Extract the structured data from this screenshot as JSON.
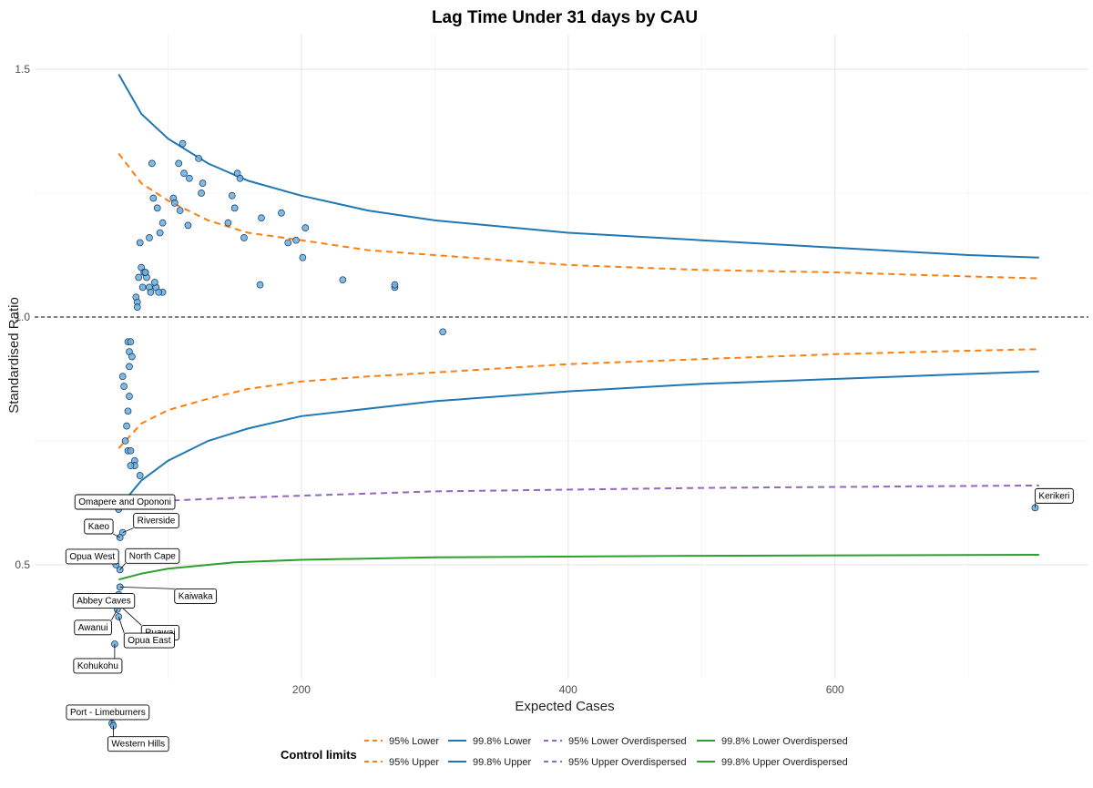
{
  "chart_data": {
    "type": "scatter",
    "title": "Lag Time Under 31 days by CAU",
    "xlabel": "Expected Cases",
    "ylabel": "Standardised Ratio",
    "xlim": [
      0,
      790
    ],
    "ylim": [
      0.27,
      1.57
    ],
    "x_ticks": [
      200,
      400,
      600
    ],
    "x_tick_labels": [
      "200",
      "400",
      "600"
    ],
    "y_ticks": [
      0.5,
      1.0,
      1.5
    ],
    "y_tick_labels": [
      "0.5",
      "1.0",
      "1.5"
    ],
    "reference_line": 1.0,
    "grid": true,
    "legend": {
      "position": "bottom",
      "title": "Control limits",
      "items": [
        {
          "key": "l95",
          "label": "95% Lower",
          "color": "#ff7f0e",
          "dash": "dashed"
        },
        {
          "key": "u95",
          "label": "95% Upper",
          "color": "#ff7f0e",
          "dash": "dashed"
        },
        {
          "key": "l998",
          "label": "99.8% Lower",
          "color": "#1f77b4",
          "dash": "solid"
        },
        {
          "key": "u998",
          "label": "99.8% Upper",
          "color": "#1f77b4",
          "dash": "solid"
        },
        {
          "key": "l95od",
          "label": "95% Lower Overdispersed",
          "color": "#9467bd",
          "dash": "dashed"
        },
        {
          "key": "u95od",
          "label": "95% Upper Overdispersed",
          "color": "#9467bd",
          "dash": "dashed"
        },
        {
          "key": "l998od",
          "label": "99.8% Lower Overdispersed",
          "color": "#2ca02c",
          "dash": "solid"
        },
        {
          "key": "u998od",
          "label": "99.8% Upper Overdispersed",
          "color": "#2ca02c",
          "dash": "solid"
        }
      ]
    },
    "series": [
      {
        "key": "u998",
        "color": "#1f77b4",
        "dash": "solid",
        "x": [
          63,
          80,
          100,
          130,
          160,
          200,
          250,
          300,
          400,
          500,
          600,
          700,
          753
        ],
        "y": [
          1.49,
          1.41,
          1.36,
          1.31,
          1.275,
          1.245,
          1.215,
          1.195,
          1.17,
          1.155,
          1.14,
          1.125,
          1.12
        ]
      },
      {
        "key": "u95",
        "color": "#ff7f0e",
        "dash": "dashed",
        "x": [
          63,
          80,
          100,
          130,
          160,
          200,
          250,
          300,
          400,
          500,
          600,
          700,
          753
        ],
        "y": [
          1.33,
          1.27,
          1.235,
          1.195,
          1.17,
          1.155,
          1.135,
          1.125,
          1.105,
          1.095,
          1.09,
          1.082,
          1.078
        ]
      },
      {
        "key": "l95",
        "color": "#ff7f0e",
        "dash": "dashed",
        "x": [
          63,
          80,
          100,
          130,
          160,
          200,
          250,
          300,
          400,
          500,
          600,
          700,
          753
        ],
        "y": [
          0.735,
          0.785,
          0.812,
          0.835,
          0.855,
          0.87,
          0.88,
          0.888,
          0.905,
          0.915,
          0.925,
          0.932,
          0.935
        ]
      },
      {
        "key": "l998",
        "color": "#1f77b4",
        "dash": "solid",
        "x": [
          63,
          80,
          100,
          130,
          160,
          200,
          250,
          300,
          400,
          500,
          600,
          700,
          753
        ],
        "y": [
          0.615,
          0.67,
          0.71,
          0.75,
          0.775,
          0.8,
          0.815,
          0.83,
          0.85,
          0.865,
          0.875,
          0.885,
          0.89
        ]
      },
      {
        "key": "l95od",
        "color": "#9467bd",
        "dash": "dashed",
        "x": [
          63,
          150,
          300,
          500,
          753
        ],
        "y": [
          0.625,
          0.635,
          0.648,
          0.655,
          0.66
        ]
      },
      {
        "key": "l998od",
        "color": "#2ca02c",
        "dash": "solid",
        "x": [
          63,
          80,
          100,
          150,
          200,
          300,
          500,
          753
        ],
        "y": [
          0.47,
          0.482,
          0.492,
          0.505,
          0.51,
          0.515,
          0.518,
          0.52
        ]
      }
    ],
    "points": {
      "x": [
        80,
        88,
        108,
        111,
        116,
        112,
        123,
        126,
        125,
        152,
        154,
        148,
        150,
        145,
        185,
        170,
        157,
        196,
        203,
        190,
        201,
        86,
        91,
        94,
        96,
        92,
        89,
        104,
        105,
        109,
        115,
        86,
        79,
        84,
        81,
        82,
        78,
        76,
        77,
        77,
        83,
        83,
        90,
        87,
        96,
        93,
        169,
        231,
        270,
        270,
        306,
        70,
        72,
        71,
        73,
        71,
        66,
        67,
        71,
        70,
        69,
        68,
        70,
        72,
        75,
        75,
        72,
        79
      ],
      "y": [
        1.1,
        1.31,
        1.31,
        1.35,
        1.28,
        1.29,
        1.32,
        1.27,
        1.25,
        1.29,
        1.28,
        1.245,
        1.22,
        1.19,
        1.21,
        1.2,
        1.16,
        1.155,
        1.18,
        1.15,
        1.12,
        1.06,
        1.06,
        1.17,
        1.19,
        1.22,
        1.24,
        1.24,
        1.23,
        1.215,
        1.185,
        1.16,
        1.15,
        1.08,
        1.06,
        1.09,
        1.08,
        1.04,
        1.03,
        1.02,
        1.09,
        1.09,
        1.07,
        1.05,
        1.05,
        1.05,
        1.065,
        1.075,
        1.06,
        1.065,
        0.97,
        0.95,
        0.95,
        0.93,
        0.92,
        0.9,
        0.88,
        0.86,
        0.84,
        0.81,
        0.78,
        0.75,
        0.73,
        0.73,
        0.71,
        0.7,
        0.7,
        0.68
      ]
    },
    "labelled_points": [
      {
        "label": "Omapere and Opononi",
        "x": 63,
        "y": 0.612
      },
      {
        "label": "Riverside",
        "x": 66,
        "y": 0.565
      },
      {
        "label": "Kaeo",
        "x": 64,
        "y": 0.555
      },
      {
        "label": "Opua West",
        "x": 61,
        "y": 0.5
      },
      {
        "label": "North Cape",
        "x": 64,
        "y": 0.49
      },
      {
        "label": "Kaiwaka",
        "x": 64,
        "y": 0.455
      },
      {
        "label": "Abbey Caves",
        "x": 63,
        "y": 0.44
      },
      {
        "label": "Ruawai",
        "x": 63,
        "y": 0.42
      },
      {
        "label": "Awanui",
        "x": 62,
        "y": 0.41
      },
      {
        "label": "Opua East",
        "x": 63,
        "y": 0.395
      },
      {
        "label": "Kohukohu",
        "x": 60,
        "y": 0.34
      },
      {
        "label": "Port - Limeburners",
        "x": 58,
        "y": 0.18
      },
      {
        "label": "Western Hills",
        "x": 59,
        "y": 0.175
      },
      {
        "label": "Kerikeri",
        "x": 750,
        "y": 0.615
      }
    ]
  }
}
